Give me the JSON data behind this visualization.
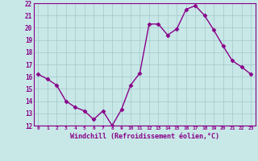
{
  "x": [
    0,
    1,
    2,
    3,
    4,
    5,
    6,
    7,
    8,
    9,
    10,
    11,
    12,
    13,
    14,
    15,
    16,
    17,
    18,
    19,
    20,
    21,
    22,
    23
  ],
  "y": [
    16.2,
    15.8,
    15.3,
    14.0,
    13.5,
    13.2,
    12.5,
    13.2,
    12.0,
    13.3,
    15.3,
    16.3,
    20.3,
    20.3,
    19.4,
    19.9,
    21.5,
    21.8,
    21.0,
    19.8,
    18.5,
    17.3,
    16.8,
    16.2
  ],
  "ylim": [
    12,
    22
  ],
  "yticks": [
    12,
    13,
    14,
    15,
    16,
    17,
    18,
    19,
    20,
    21,
    22
  ],
  "xtick_labels": [
    "0",
    "1",
    "2",
    "3",
    "4",
    "5",
    "6",
    "7",
    "8",
    "9",
    "10",
    "11",
    "12",
    "13",
    "14",
    "15",
    "16",
    "17",
    "18",
    "19",
    "20",
    "21",
    "22",
    "23"
  ],
  "xlabel": "Windchill (Refroidissement éolien,°C)",
  "line_color": "#880088",
  "marker": "D",
  "bg_color": "#c8e8e8",
  "grid_color": "#aacccc",
  "label_color": "#880088",
  "tick_color": "#880088",
  "marker_size": 2.5,
  "line_width": 1.0
}
